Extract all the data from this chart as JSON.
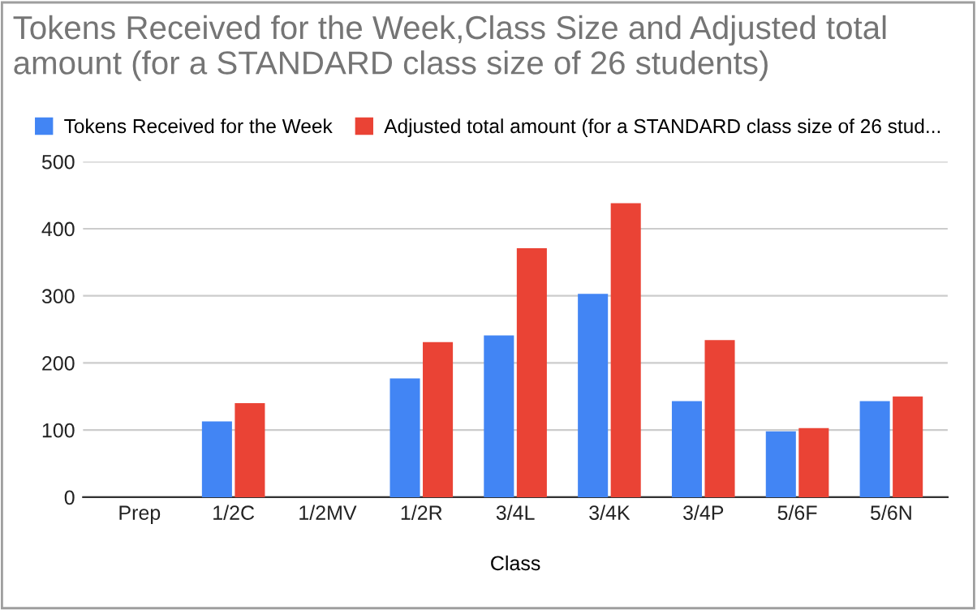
{
  "chart_data": {
    "type": "bar",
    "title": "Tokens Received for the Week,Class Size and Adjusted total amount (for a STANDARD class size of 26 students)",
    "xlabel": "Class",
    "categories": [
      "Prep",
      "1/2C",
      "1/2MV",
      "1/2R",
      "3/4L",
      "3/4K",
      "3/4P",
      "5/6F",
      "5/6N"
    ],
    "series": [
      {
        "name": "Tokens Received for the Week",
        "color": "#4285f4",
        "values": [
          null,
          113,
          null,
          177,
          241,
          303,
          143,
          98,
          143
        ]
      },
      {
        "name": "Adjusted total amount (for a STANDARD class size of 26 stud...",
        "color": "#ea4335",
        "values": [
          null,
          140,
          null,
          231,
          371,
          438,
          234,
          103,
          150
        ]
      }
    ],
    "ylim": [
      0,
      500
    ],
    "yticks": [
      0,
      100,
      200,
      300,
      400,
      500
    ],
    "grid": "y",
    "legend": "top left"
  }
}
